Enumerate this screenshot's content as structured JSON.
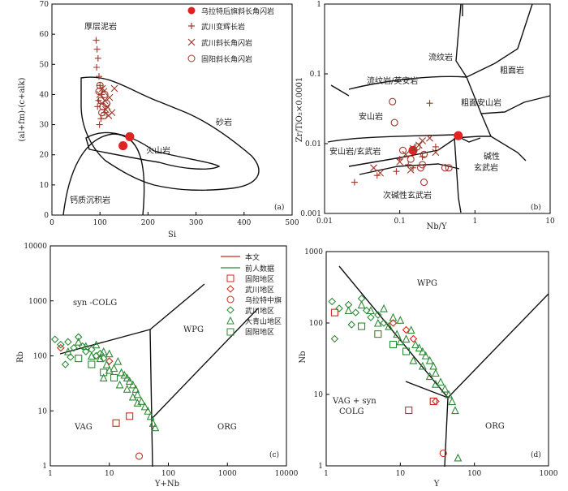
{
  "chart_data": [
    {
      "panel": "(a)",
      "type": "scatter",
      "xlabel": "Si",
      "ylabel": "(al+fm)-(c+alk)",
      "xlim": [
        0,
        500
      ],
      "ylim": [
        0,
        70
      ],
      "xticks": [
        "0",
        "100",
        "200",
        "300",
        "400",
        "500"
      ],
      "yticks": [
        "0",
        "10",
        "20",
        "30",
        "40",
        "50",
        "60",
        "70"
      ],
      "field_labels": [
        "厚层泥岩",
        "砂岩",
        "火山岩",
        "钙质沉积岩"
      ],
      "legend": [
        "乌拉特后旗斜长角闪岩",
        "武川变辉长岩",
        "武川斜长角闪岩",
        "固阳斜长角闪岩"
      ],
      "series": [
        {
          "name": "乌拉特后旗斜长角闪岩",
          "marker": "filled-circle",
          "x": [
            148,
            162
          ],
          "y": [
            23,
            26
          ]
        },
        {
          "name": "武川变辉长岩",
          "marker": "plus",
          "x": [
            92,
            94,
            96,
            93,
            98,
            100,
            103,
            97,
            95,
            110,
            102,
            99
          ],
          "y": [
            58,
            55,
            52,
            49,
            46,
            43,
            40,
            38,
            36,
            34,
            32,
            30
          ]
        },
        {
          "name": "武川斜长角闪岩",
          "marker": "cross",
          "x": [
            100,
            105,
            110,
            115,
            120,
            125,
            112,
            108,
            118,
            104,
            130
          ],
          "y": [
            40,
            42,
            38,
            36,
            39,
            34,
            35,
            41,
            33,
            37,
            42
          ]
        },
        {
          "name": "固阳斜长角闪岩",
          "marker": "open-circle",
          "x": [
            98,
            102,
            106,
            110,
            104,
            114,
            100,
            108
          ],
          "y": [
            41,
            38,
            36,
            40,
            34,
            37,
            43,
            33
          ]
        }
      ]
    },
    {
      "panel": "(b)",
      "type": "scatter",
      "xlabel": "Nb/Y",
      "ylabel": "Zr/TiO₂×0.0001",
      "xscale": "log",
      "yscale": "log",
      "xlim": [
        0.01,
        10
      ],
      "ylim": [
        0.001,
        1
      ],
      "xticks": [
        "0.01",
        "0.1",
        "1",
        "10"
      ],
      "yticks": [
        "0.001",
        "0.01",
        "0.1",
        "1"
      ],
      "field_labels": [
        "流纹岩",
        "粗面岩",
        "流纹岩/英安岩",
        "粗面安山岩",
        "安山岩",
        "安山岩/玄武岩",
        "碱性",
        "玄武岩",
        "次碱性玄武岩"
      ],
      "series": [
        {
          "name": "乌拉特后旗斜长角闪岩",
          "marker": "filled-circle",
          "x": [
            0.15,
            0.6
          ],
          "y": [
            0.008,
            0.013
          ]
        },
        {
          "name": "武川变辉长岩",
          "marker": "plus",
          "x": [
            0.025,
            0.05,
            0.09,
            0.13,
            0.2,
            0.25,
            0.1,
            0.15,
            0.3
          ],
          "y": [
            0.0028,
            0.0035,
            0.004,
            0.005,
            0.0065,
            0.038,
            0.006,
            0.0045,
            0.009
          ]
        },
        {
          "name": "武川斜长角闪岩",
          "marker": "cross",
          "x": [
            0.045,
            0.055,
            0.1,
            0.12,
            0.15,
            0.18,
            0.2,
            0.14,
            0.25,
            0.3
          ],
          "y": [
            0.0045,
            0.0038,
            0.0055,
            0.007,
            0.0085,
            0.0095,
            0.011,
            0.0042,
            0.012,
            0.0075
          ]
        },
        {
          "name": "固阳斜长角闪岩",
          "marker": "open-circle",
          "x": [
            0.08,
            0.085,
            0.11,
            0.14,
            0.17,
            0.2,
            0.21,
            0.19,
            0.4,
            0.45,
            0.21
          ],
          "y": [
            0.04,
            0.02,
            0.008,
            0.006,
            0.009,
            0.005,
            0.007,
            0.0045,
            0.0045,
            0.0045,
            0.0028
          ]
        }
      ]
    },
    {
      "panel": "(c)",
      "type": "scatter",
      "xlabel": "Y+Nb",
      "ylabel": "Rb",
      "xscale": "log",
      "yscale": "log",
      "xlim": [
        1,
        10000
      ],
      "ylim": [
        1,
        10000
      ],
      "xticks": [
        "1",
        "10",
        "100",
        "1000",
        "10000"
      ],
      "yticks": [
        "1",
        "10",
        "100",
        "1000",
        "10000"
      ],
      "field_labels": [
        "syn -COLG",
        "WPG",
        "VAG",
        "ORG"
      ],
      "legend": [
        "本文",
        "前人数据",
        "固阳地区",
        "武川地区",
        "乌拉特中旗",
        "武川地区",
        "大青山地区",
        "固阳地区"
      ],
      "series": [
        {
          "name": "固阳地区",
          "color": "red",
          "marker": "open-square",
          "x": [
            13,
            22
          ],
          "y": [
            6,
            8
          ]
        },
        {
          "name": "武川地区",
          "color": "red",
          "marker": "open-diamond",
          "x": [
            1.5,
            6,
            10
          ],
          "y": [
            140,
            100,
            80
          ]
        },
        {
          "name": "乌拉特中旗",
          "color": "red",
          "marker": "open-circle",
          "x": [
            32
          ],
          "y": [
            1.5
          ]
        },
        {
          "name": "武川地区",
          "color": "green",
          "marker": "open-diamond",
          "x": [
            1.2,
            1.5,
            2,
            2.5,
            3,
            3.5,
            4,
            5,
            6,
            7,
            8,
            1.8,
            2.2
          ],
          "y": [
            200,
            160,
            180,
            140,
            220,
            150,
            120,
            130,
            100,
            110,
            90,
            70,
            95
          ]
        },
        {
          "name": "大青山地区",
          "color": "green",
          "marker": "open-triangle",
          "x": [
            2,
            3,
            4,
            5,
            6,
            7,
            8,
            9,
            10,
            12,
            14,
            16,
            18,
            20,
            22,
            25,
            28,
            30,
            35,
            40,
            45,
            50,
            55,
            60,
            8,
            10,
            15,
            20,
            25,
            30
          ],
          "y": [
            120,
            180,
            150,
            100,
            160,
            90,
            120,
            70,
            110,
            60,
            80,
            50,
            45,
            40,
            35,
            30,
            25,
            20,
            15,
            12,
            10,
            8,
            6,
            5,
            40,
            55,
            30,
            25,
            18,
            14
          ]
        },
        {
          "name": "固阳地区",
          "color": "green",
          "marker": "open-square",
          "x": [
            3,
            5,
            8,
            12
          ],
          "y": [
            90,
            70,
            50,
            40
          ]
        }
      ]
    },
    {
      "panel": "(d)",
      "type": "scatter",
      "xlabel": "Y",
      "ylabel": "Nb",
      "xscale": "log",
      "yscale": "log",
      "xlim": [
        1,
        1000
      ],
      "ylim": [
        1,
        1000
      ],
      "xticks": [
        "1",
        "10",
        "100",
        "1000"
      ],
      "yticks": [
        "1",
        "10",
        "100",
        "1000"
      ],
      "field_labels": [
        "WPG",
        "VAG + syn",
        "COLG",
        "ORG"
      ],
      "series": [
        {
          "name": "固阳地区",
          "color": "red",
          "marker": "open-square",
          "x": [
            1.3,
            13,
            28
          ],
          "y": [
            140,
            6,
            8
          ]
        },
        {
          "name": "武川地区",
          "color": "red",
          "marker": "open-diamond",
          "x": [
            8,
            12,
            15,
            30
          ],
          "y": [
            100,
            80,
            60,
            8
          ]
        },
        {
          "name": "乌拉特中旗",
          "color": "red",
          "marker": "open-circle",
          "x": [
            38
          ],
          "y": [
            1.5
          ]
        },
        {
          "name": "武川地区",
          "color": "green",
          "marker": "open-diamond",
          "x": [
            1.2,
            1.5,
            2,
            2.5,
            3,
            3.5,
            4,
            5,
            6,
            1.3,
            2.2
          ],
          "y": [
            200,
            160,
            180,
            140,
            220,
            150,
            120,
            130,
            100,
            60,
            95
          ]
        },
        {
          "name": "大青山地区",
          "color": "green",
          "marker": "open-triangle",
          "x": [
            2,
            3,
            4,
            5,
            6,
            7,
            8,
            9,
            10,
            12,
            14,
            16,
            18,
            20,
            22,
            25,
            28,
            30,
            35,
            40,
            45,
            50,
            55,
            60,
            10,
            15,
            20,
            25,
            30
          ],
          "y": [
            150,
            180,
            150,
            100,
            160,
            90,
            120,
            70,
            110,
            60,
            80,
            50,
            45,
            40,
            35,
            30,
            25,
            20,
            15,
            12,
            10,
            8,
            6,
            1.3,
            55,
            30,
            25,
            18,
            14
          ]
        },
        {
          "name": "固阳地区",
          "color": "green",
          "marker": "open-square",
          "x": [
            3,
            5,
            8,
            12
          ],
          "y": [
            90,
            70,
            50,
            40
          ]
        }
      ]
    }
  ]
}
